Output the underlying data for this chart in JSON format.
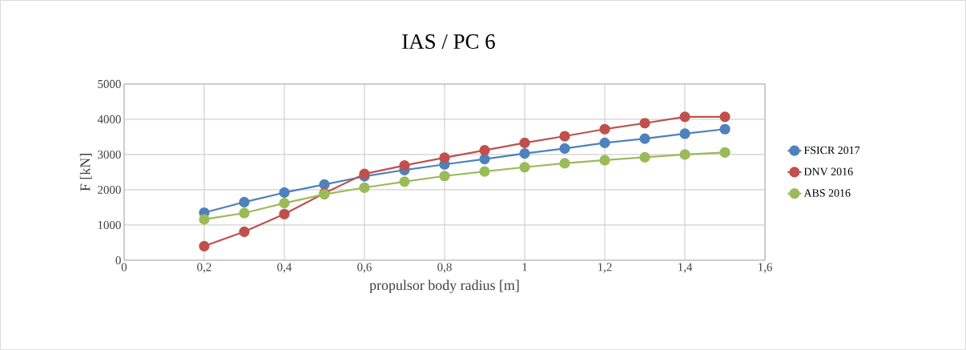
{
  "chart_data": {
    "type": "line",
    "title": "IAS / PC 6",
    "xlabel": "propulsor body radius [m]",
    "ylabel": "F [kN]",
    "x": [
      0.2,
      0.3,
      0.4,
      0.5,
      0.6,
      0.7,
      0.8,
      0.9,
      1.0,
      1.1,
      1.2,
      1.3,
      1.4,
      1.5
    ],
    "series": [
      {
        "name": "FSICR 2017",
        "color": "#4f81bd",
        "values": [
          1350,
          1650,
          1920,
          2150,
          2380,
          2560,
          2720,
          2870,
          3030,
          3170,
          3330,
          3450,
          3590,
          3720
        ]
      },
      {
        "name": "DNV 2016",
        "color": "#c0504d",
        "values": [
          400,
          810,
          1310,
          1900,
          2450,
          2690,
          2910,
          3120,
          3330,
          3520,
          3720,
          3890,
          4070,
          4070
        ]
      },
      {
        "name": "ABS 2016",
        "color": "#9bbb59",
        "values": [
          1160,
          1340,
          1620,
          1870,
          2060,
          2230,
          2390,
          2520,
          2640,
          2750,
          2840,
          2920,
          3000,
          3060
        ]
      }
    ],
    "xlim": [
      0,
      1.6
    ],
    "xticks": [
      0,
      {
        "value": 0.2,
        "label": "0,2"
      },
      {
        "value": 0.4,
        "label": "0,4"
      },
      {
        "value": 0.6,
        "label": "0,6"
      },
      {
        "value": 0.8,
        "label": "0,8"
      },
      1,
      {
        "value": 1.2,
        "label": "1,2"
      },
      {
        "value": 1.4,
        "label": "1,4"
      },
      {
        "value": 1.6,
        "label": "1,6"
      }
    ],
    "ylim": [
      0,
      5000
    ],
    "yticks": [
      0,
      1000,
      2000,
      3000,
      4000,
      5000
    ],
    "grid": true,
    "legend": "right",
    "marker": "circle",
    "line_style": "solid"
  }
}
